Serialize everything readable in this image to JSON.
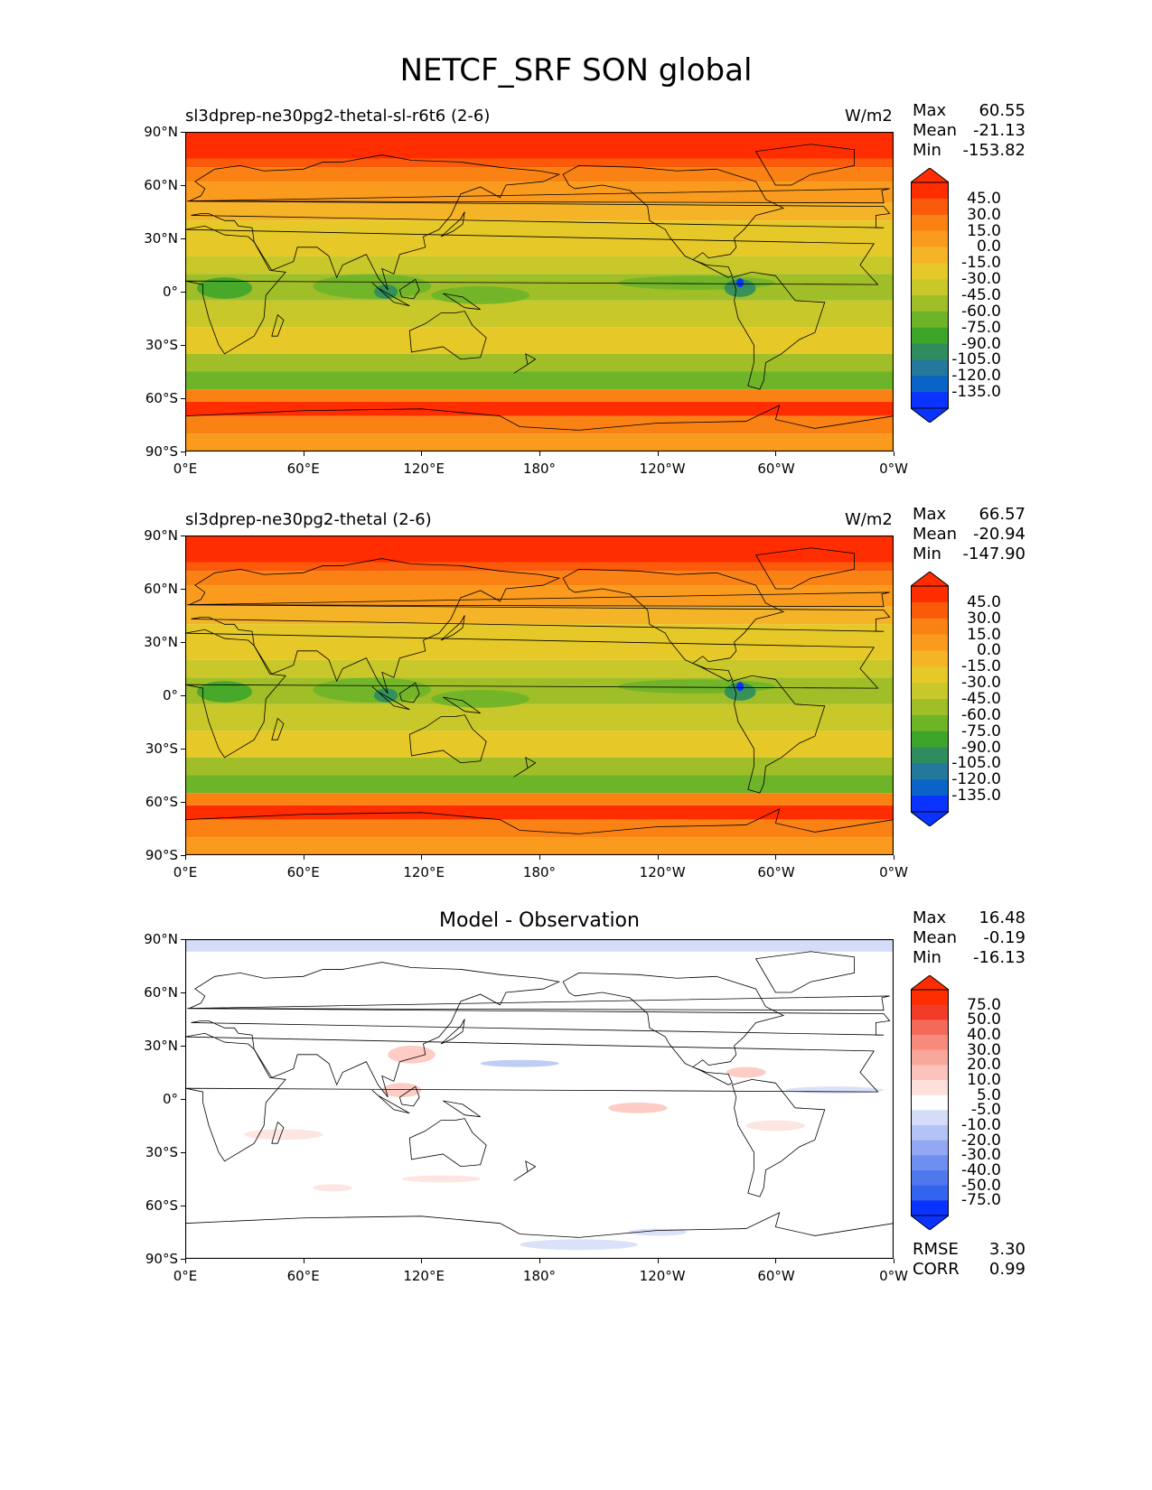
{
  "title": "NETCF_SRF SON global",
  "colors": {
    "full_field": [
      "#0a33ff",
      "#0a64c8",
      "#23789b",
      "#2e8c5f",
      "#3da52a",
      "#6eb428",
      "#a0be28",
      "#c8c82a",
      "#e6c828",
      "#f5b428",
      "#fa9b1e",
      "#fa8214",
      "#fa5a0a",
      "#ff2d00"
    ],
    "diff": [
      "#0a33ff",
      "#3264f0",
      "#5078ee",
      "#6e8ef0",
      "#92a8f2",
      "#b4c3f5",
      "#d4dcf8",
      "#ffffff",
      "#fde0dc",
      "#fbc3bb",
      "#f9a69b",
      "#f78a7d",
      "#f46a5a",
      "#f23c28",
      "#ff2d00"
    ]
  },
  "chart_data": [
    {
      "type": "heatmap",
      "panel": "test",
      "title": "sl3dprep-ne30pg2-thetal-sl-r6t6 (2-6)",
      "units": "W/m2",
      "stats": {
        "max": "60.55",
        "mean": "-21.13",
        "min": "-153.82"
      },
      "xticks": [
        "0°E",
        "60°E",
        "120°E",
        "180°",
        "120°W",
        "60°W",
        "0°W"
      ],
      "yticks": [
        "90°N",
        "60°N",
        "30°N",
        "0°",
        "30°S",
        "60°S",
        "90°S"
      ],
      "colorbar_levels": [
        "45.0",
        "30.0",
        "15.0",
        "0.0",
        "-15.0",
        "-30.0",
        "-45.0",
        "-60.0",
        "-75.0",
        "-90.0",
        "-105.0",
        "-120.0",
        "-135.0"
      ]
    },
    {
      "type": "heatmap",
      "panel": "reference",
      "title": "sl3dprep-ne30pg2-thetal (2-6)",
      "units": "W/m2",
      "stats": {
        "max": "66.57",
        "mean": "-20.94",
        "min": "-147.90"
      },
      "xticks": [
        "0°E",
        "60°E",
        "120°E",
        "180°",
        "120°W",
        "60°W",
        "0°W"
      ],
      "yticks": [
        "90°N",
        "60°N",
        "30°N",
        "0°",
        "30°S",
        "60°S",
        "90°S"
      ],
      "colorbar_levels": [
        "45.0",
        "30.0",
        "15.0",
        "0.0",
        "-15.0",
        "-30.0",
        "-45.0",
        "-60.0",
        "-75.0",
        "-90.0",
        "-105.0",
        "-120.0",
        "-135.0"
      ]
    },
    {
      "type": "heatmap",
      "panel": "difference",
      "title": "Model - Observation",
      "units": "",
      "stats": {
        "max": "16.48",
        "mean": "-0.19",
        "min": "-16.13"
      },
      "xticks": [
        "0°E",
        "60°E",
        "120°E",
        "180°",
        "120°W",
        "60°W",
        "0°W"
      ],
      "yticks": [
        "90°N",
        "60°N",
        "30°N",
        "0°",
        "30°S",
        "60°S",
        "90°S"
      ],
      "colorbar_levels": [
        "75.0",
        "50.0",
        "40.0",
        "30.0",
        "20.0",
        "10.0",
        "5.0",
        "-5.0",
        "-10.0",
        "-20.0",
        "-30.0",
        "-40.0",
        "-50.0",
        "-75.0"
      ],
      "metrics": {
        "rmse": "3.30",
        "corr": "0.99"
      }
    }
  ],
  "labels": {
    "max": "Max",
    "mean": "Mean",
    "min": "Min",
    "rmse": "RMSE",
    "corr": "CORR"
  }
}
